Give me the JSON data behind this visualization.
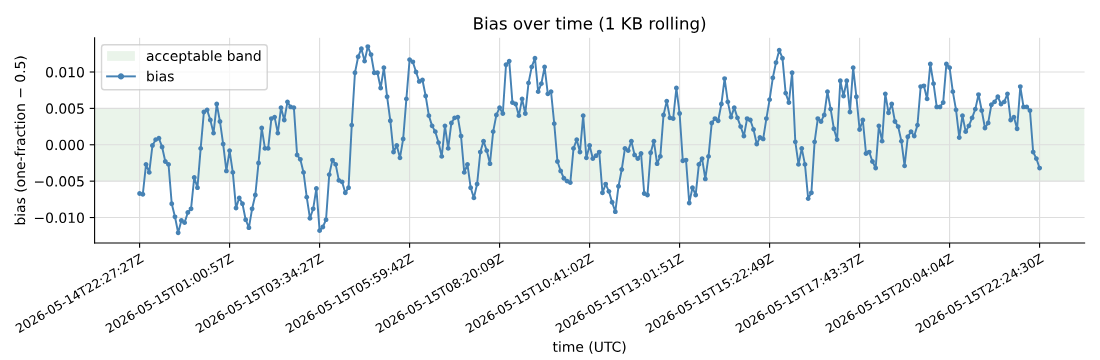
{
  "chart_data": {
    "type": "line",
    "title": "Bias over time (1 KB rolling)",
    "xlabel": "time (UTC)",
    "ylabel": "bias (one-fraction − 0.5)",
    "categories": [
      "2026-05-14T22:27:27Z",
      null,
      null,
      null,
      null,
      null,
      null,
      null,
      null,
      null,
      null,
      null,
      null,
      null,
      null,
      null,
      null,
      null,
      null,
      null,
      null,
      null,
      null,
      null,
      null,
      null,
      null,
      null,
      "2026-05-15T01:00:57Z",
      null,
      null,
      null,
      null,
      null,
      null,
      null,
      null,
      null,
      null,
      null,
      null,
      null,
      null,
      null,
      null,
      null,
      null,
      null,
      null,
      null,
      null,
      null,
      null,
      null,
      null,
      null,
      "2026-05-15T03:34:27Z",
      null,
      null,
      null,
      null,
      null,
      null,
      null,
      null,
      null,
      null,
      null,
      null,
      null,
      null,
      null,
      null,
      null,
      null,
      null,
      null,
      null,
      null,
      null,
      null,
      null,
      null,
      null,
      "2026-05-15T05:59:42Z",
      null,
      null,
      null,
      null,
      null,
      null,
      null,
      null,
      null,
      null,
      null,
      null,
      null,
      null,
      null,
      null,
      null,
      null,
      null,
      null,
      null,
      null,
      null,
      null,
      null,
      null,
      null,
      "2026-05-15T08:20:09Z",
      null,
      null,
      null,
      null,
      null,
      null,
      null,
      null,
      null,
      null,
      null,
      null,
      null,
      null,
      null,
      null,
      null,
      null,
      null,
      null,
      null,
      null,
      null,
      null,
      null,
      null,
      null,
      "2026-05-15T10:41:02Z",
      null,
      null,
      null,
      null,
      null,
      null,
      null,
      null,
      null,
      null,
      null,
      null,
      null,
      null,
      null,
      null,
      null,
      null,
      null,
      null,
      null,
      null,
      null,
      null,
      null,
      null,
      null,
      "2026-05-15T13:01:51Z",
      null,
      null,
      null,
      null,
      null,
      null,
      null,
      null,
      null,
      null,
      null,
      null,
      null,
      null,
      null,
      null,
      null,
      null,
      null,
      null,
      null,
      null,
      null,
      null,
      null,
      null,
      null,
      "2026-05-15T15:22:49Z",
      null,
      null,
      null,
      null,
      null,
      null,
      null,
      null,
      null,
      null,
      null,
      null,
      null,
      null,
      null,
      null,
      null,
      null,
      null,
      null,
      null,
      null,
      null,
      null,
      null,
      null,
      null,
      "2026-05-15T17:43:37Z",
      null,
      null,
      null,
      null,
      null,
      null,
      null,
      null,
      null,
      null,
      null,
      null,
      null,
      null,
      null,
      null,
      null,
      null,
      null,
      null,
      null,
      null,
      null,
      null,
      null,
      null,
      null,
      "2026-05-15T20:04:04Z",
      null,
      null,
      null,
      null,
      null,
      null,
      null,
      null,
      null,
      null,
      null,
      null,
      null,
      null,
      null,
      null,
      null,
      null,
      null,
      null,
      null,
      null,
      null,
      null,
      null,
      null,
      null,
      "2026-05-15T22:24:30Z"
    ],
    "series": [
      {
        "name": "bias",
        "color": "#4682b4",
        "values": [
          -0.0067,
          -0.0068,
          -0.0027,
          -0.0038,
          -0.0001,
          0.0007,
          0.0009,
          -0.0003,
          -0.0023,
          -0.0027,
          -0.0081,
          -0.0099,
          -0.0121,
          -0.0104,
          -0.0107,
          -0.0093,
          -0.0088,
          -0.0045,
          -0.0059,
          -0.0005,
          0.0045,
          0.0048,
          0.0034,
          0.0016,
          0.0056,
          0.0032,
          0.0001,
          -0.0036,
          -0.0008,
          -0.0038,
          -0.0087,
          -0.0073,
          -0.0081,
          -0.0103,
          -0.0114,
          -0.0088,
          -0.0069,
          -0.0025,
          0.0023,
          -0.0005,
          -0.0005,
          0.0036,
          0.0038,
          0.0016,
          0.0051,
          0.0034,
          0.0059,
          0.0052,
          0.0051,
          -0.0014,
          -0.002,
          -0.0038,
          -0.0072,
          -0.0101,
          -0.0088,
          -0.006,
          -0.0118,
          -0.0113,
          -0.0103,
          -0.0041,
          -0.0021,
          -0.0027,
          -0.0049,
          -0.0051,
          -0.0066,
          -0.0059,
          0.0027,
          0.0099,
          0.0121,
          0.0132,
          0.0115,
          0.0135,
          0.0124,
          0.0099,
          0.0099,
          0.0078,
          0.0106,
          0.0066,
          0.0033,
          -0.001,
          -0.0001,
          -0.0018,
          0.0008,
          0.0063,
          0.0117,
          0.0114,
          0.01,
          0.0087,
          0.0089,
          0.0067,
          0.004,
          0.0026,
          0.0018,
          0.0003,
          -0.0016,
          0.0026,
          -0.0005,
          0.003,
          0.0037,
          0.0038,
          0.0012,
          -0.0038,
          -0.0027,
          -0.0059,
          -0.0073,
          -0.0054,
          -0.001,
          0.0005,
          -0.0008,
          -0.0026,
          0.0018,
          0.0041,
          0.0051,
          0.0043,
          0.011,
          0.0115,
          0.0058,
          0.0056,
          0.004,
          0.0063,
          0.0043,
          0.0085,
          0.0107,
          0.0119,
          0.0073,
          0.0084,
          0.0107,
          0.007,
          0.0073,
          0.0029,
          -0.0023,
          -0.0036,
          -0.0046,
          -0.005,
          -0.0052,
          -0.0005,
          0.0007,
          -0.001,
          0.004,
          -0.0018,
          -0.0001,
          -0.0019,
          -0.0015,
          -0.001,
          -0.0066,
          -0.0054,
          -0.0064,
          -0.0079,
          -0.0092,
          -0.0057,
          -0.0034,
          -0.0005,
          -0.0008,
          0.0005,
          -0.0014,
          -0.0019,
          -0.0012,
          -0.0067,
          -0.0069,
          -0.0011,
          0.0005,
          -0.0026,
          -0.0016,
          0.0041,
          0.006,
          0.0037,
          0.0036,
          0.0078,
          0.0043,
          -0.0022,
          -0.0021,
          -0.008,
          -0.0059,
          -0.0069,
          -0.0027,
          -0.0019,
          -0.0047,
          -0.0016,
          0.003,
          0.0036,
          0.0033,
          0.0056,
          0.0091,
          0.0059,
          0.0038,
          0.0051,
          0.0037,
          0.0025,
          0.0012,
          0.0036,
          0.0034,
          0.0021,
          0.0001,
          0.001,
          0.0008,
          0.0036,
          0.0062,
          0.0092,
          0.0113,
          0.013,
          0.0119,
          0.0071,
          0.0058,
          0.0099,
          0.0004,
          -0.0027,
          -0.0005,
          -0.0027,
          -0.0074,
          -0.0066,
          0.0004,
          0.0036,
          0.0032,
          0.0041,
          0.0073,
          0.0049,
          0.0022,
          0.0007,
          0.0088,
          0.0067,
          0.0088,
          0.0045,
          0.0106,
          0.0066,
          0.0021,
          0.0034,
          -0.0012,
          -0.001,
          -0.0023,
          -0.0032,
          0.0026,
          0.0005,
          0.007,
          0.0044,
          0.0056,
          0.0032,
          0.0025,
          0.0005,
          -0.0029,
          0.0011,
          0.0018,
          0.0012,
          0.0027,
          0.008,
          0.0081,
          0.0063,
          0.0111,
          0.0084,
          0.0052,
          0.0052,
          0.0058,
          0.0111,
          0.0106,
          0.0073,
          0.0048,
          0.001,
          0.004,
          0.0018,
          0.0026,
          0.0037,
          0.0049,
          0.0069,
          0.0047,
          0.0023,
          0.003,
          0.0055,
          0.0059,
          0.0066,
          0.0056,
          0.0059,
          0.007,
          0.0034,
          0.0038,
          0.0022,
          0.008,
          0.0052,
          0.0052,
          0.0047,
          -0.001,
          -0.0019,
          -0.0032
        ]
      }
    ],
    "ylim": [
      -0.0135,
      0.0147
    ],
    "yticks": [
      {
        "value": -0.01,
        "label": "−0.010"
      },
      {
        "value": -0.005,
        "label": "−0.005"
      },
      {
        "value": 0,
        "label": "0.000"
      },
      {
        "value": 0.005,
        "label": "0.005"
      },
      {
        "value": 0.01,
        "label": "0.010"
      }
    ],
    "bands": [
      {
        "axis": "y",
        "from": -0.005,
        "to": 0.005,
        "label": "acceptable band",
        "color": "#eaf4ea"
      }
    ],
    "grid": true,
    "legend": "top left",
    "marker": "circle",
    "line_style": "solid"
  }
}
